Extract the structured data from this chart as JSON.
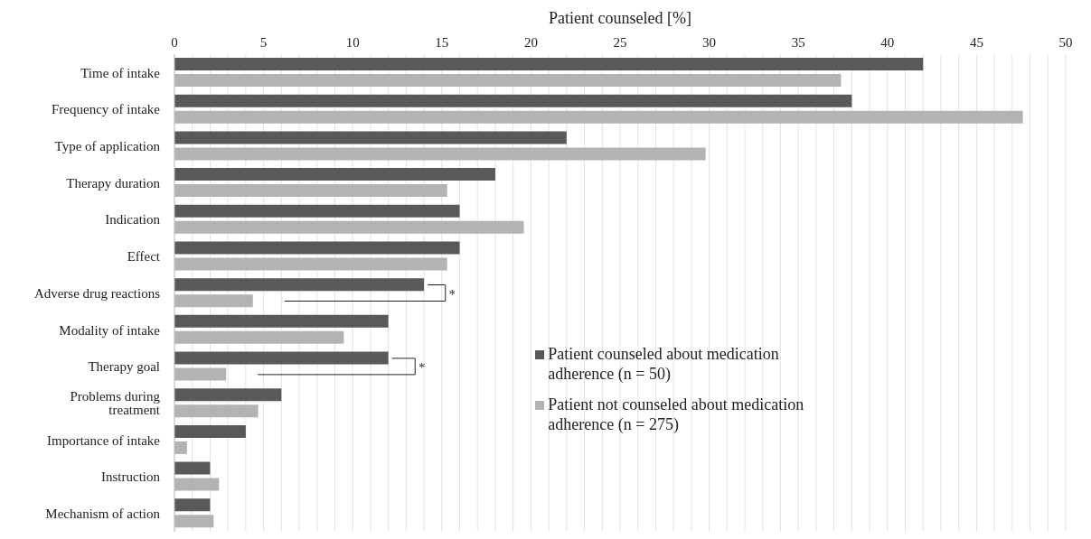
{
  "chart_data": {
    "type": "bar",
    "orientation": "horizontal",
    "xlabel": "Patient counseled [%]",
    "categories": [
      "Time of intake",
      "Frequency of intake",
      "Type of application",
      "Therapy duration",
      "Indication",
      "Effect",
      "Adverse drug reactions",
      "Modality of intake",
      "Therapy goal",
      "Problems during treatment",
      "Importance of intake",
      "Instruction",
      "Mechanism of action"
    ],
    "series": [
      {
        "name": "Patient counseled about medication adherence (n = 50)",
        "color": "#595959",
        "values": [
          42,
          38,
          22,
          18,
          16,
          16,
          14,
          12,
          12,
          6,
          4,
          2,
          2
        ]
      },
      {
        "name": "Patient not counseled about medication adherence (n = 275)",
        "color": "#b3b3b3",
        "values": [
          37.4,
          47.6,
          29.8,
          15.3,
          19.6,
          15.3,
          4.4,
          9.5,
          2.9,
          4.7,
          0.7,
          2.5,
          2.2
        ]
      }
    ],
    "xlim": [
      0,
      50
    ],
    "xticks": [
      0,
      {
        "value": 1,
        "label": null
      },
      {
        "value": 2,
        "label": null
      },
      {
        "value": 3,
        "label": null
      },
      {
        "value": 4,
        "label": null
      },
      5,
      {
        "value": 6,
        "label": null
      },
      {
        "value": 7,
        "label": null
      },
      {
        "value": 8,
        "label": null
      },
      {
        "value": 9,
        "label": null
      },
      10,
      {
        "value": 11,
        "label": null
      },
      {
        "value": 12,
        "label": null
      },
      {
        "value": 13,
        "label": null
      },
      {
        "value": 14,
        "label": null
      },
      15,
      {
        "value": 16,
        "label": null
      },
      {
        "value": 17,
        "label": null
      },
      {
        "value": 18,
        "label": null
      },
      {
        "value": 19,
        "label": null
      },
      20,
      {
        "value": 21,
        "label": null
      },
      {
        "value": 22,
        "label": null
      },
      {
        "value": 23,
        "label": null
      },
      {
        "value": 24,
        "label": null
      },
      25,
      {
        "value": 26,
        "label": null
      },
      {
        "value": 27,
        "label": null
      },
      {
        "value": 28,
        "label": null
      },
      {
        "value": 29,
        "label": null
      },
      30,
      {
        "value": 31,
        "label": null
      },
      {
        "value": 32,
        "label": null
      },
      {
        "value": 33,
        "label": null
      },
      {
        "value": 34,
        "label": null
      },
      35,
      {
        "value": 36,
        "label": null
      },
      {
        "value": 37,
        "label": null
      },
      {
        "value": 38,
        "label": null
      },
      {
        "value": 39,
        "label": null
      },
      40,
      {
        "value": 41,
        "label": null
      },
      {
        "value": 42,
        "label": null
      },
      {
        "value": 43,
        "label": null
      },
      {
        "value": 44,
        "label": null
      },
      45,
      {
        "value": 46,
        "label": null
      },
      {
        "value": 47,
        "label": null
      },
      {
        "value": 48,
        "label": null
      },
      {
        "value": 49,
        "label": null
      },
      50
    ],
    "annotations": [
      "*",
      "*"
    ],
    "grid": "x",
    "legend": "right"
  }
}
